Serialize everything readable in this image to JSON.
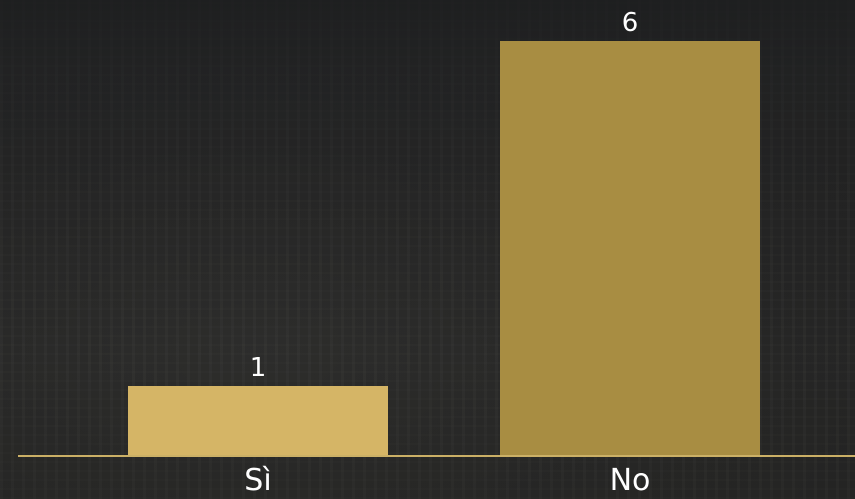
{
  "chart_data": {
    "type": "bar",
    "categories": [
      "Sì",
      "No"
    ],
    "values": [
      1,
      6
    ],
    "colors": [
      "#d5b566",
      "#a88d42"
    ],
    "axis_color": "#cbb066",
    "ylim": [
      0,
      6
    ],
    "grid": false,
    "title": "",
    "xlabel": "",
    "ylabel": ""
  }
}
